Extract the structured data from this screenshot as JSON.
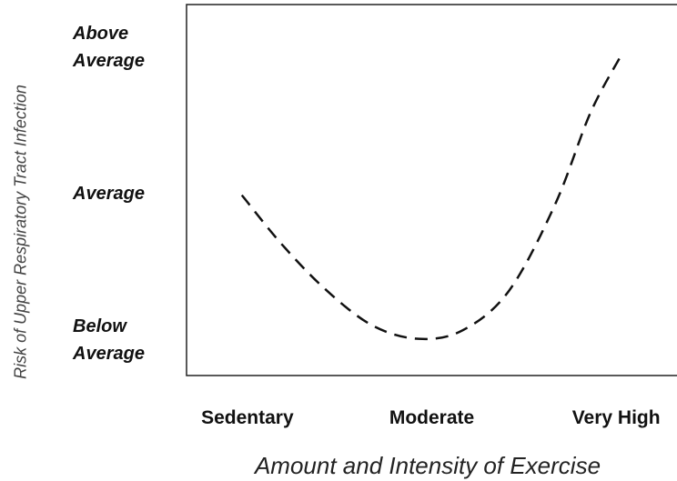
{
  "chart_data": {
    "type": "line",
    "xlabel": "Amount and Intensity of Exercise",
    "ylabel": "Risk of Upper Respiratory Tract Infection",
    "x": [
      -0.03,
      0.19,
      0.43,
      0.68,
      0.93,
      1.17,
      1.42,
      1.67,
      1.86,
      2.03
    ],
    "series": [
      {
        "color": "#111111",
        "values": [
          0.99,
          0.65,
          0.34,
          0.1,
          0.01,
          0.07,
          0.34,
          0.93,
          1.55,
          1.95
        ]
      }
    ],
    "xlim": [
      -0.33,
      2.33
    ],
    "xticks": [
      {
        "value": 0,
        "label": "Sedentary"
      },
      {
        "value": 1,
        "label": "Moderate"
      },
      {
        "value": 2,
        "label": "Very High"
      }
    ],
    "ylim": [
      -0.24,
      2.29
    ],
    "yticks": [
      {
        "value": 0,
        "label": "Below Average"
      },
      {
        "value": 1,
        "label": "Average"
      },
      {
        "value": 2,
        "label": "Above Average"
      }
    ],
    "dashed": true
  }
}
